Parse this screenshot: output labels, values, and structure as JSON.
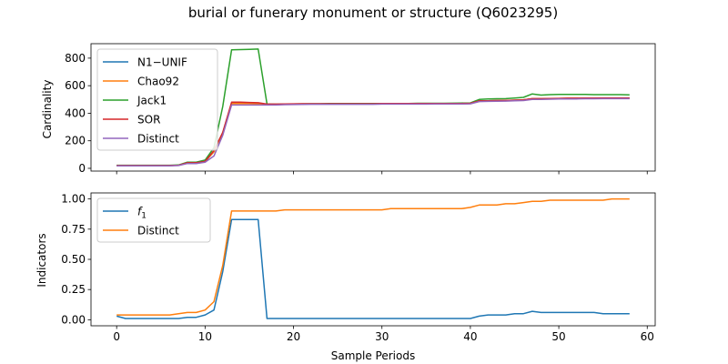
{
  "figure": {
    "title": "burial or funerary monument or structure (Q6023295)",
    "xlabel": "Sample Periods"
  },
  "chart_data": [
    {
      "type": "line",
      "ylabel": "Cardinality",
      "xlim": [
        -2.9,
        60.9
      ],
      "ylim": [
        -20,
        905
      ],
      "xticks": [
        0,
        10,
        20,
        30,
        40,
        50,
        60
      ],
      "yticks": [
        0,
        200,
        400,
        600,
        800
      ],
      "ytick_labels": [
        "0",
        "200",
        "400",
        "600",
        "800"
      ],
      "legend_position": "upper-left",
      "x": [
        0,
        1,
        2,
        3,
        4,
        5,
        6,
        7,
        8,
        9,
        10,
        11,
        12,
        13,
        14,
        15,
        16,
        17,
        18,
        19,
        20,
        21,
        22,
        23,
        24,
        25,
        26,
        27,
        28,
        29,
        30,
        31,
        32,
        33,
        34,
        35,
        36,
        37,
        38,
        39,
        40,
        41,
        42,
        43,
        44,
        45,
        46,
        47,
        48,
        49,
        50,
        51,
        52,
        53,
        54,
        55,
        56,
        57,
        58
      ],
      "series": [
        {
          "name": "N1−UNIF",
          "color": "#1f77b4",
          "values": [
            20,
            20,
            20,
            20,
            20,
            20,
            20,
            22,
            40,
            40,
            50,
            120,
            260,
            470,
            470,
            470,
            468,
            465,
            465,
            465,
            466,
            467,
            467,
            467,
            467,
            467,
            467,
            467,
            467,
            467,
            468,
            468,
            468,
            468,
            468,
            468,
            469,
            469,
            469,
            469,
            470,
            490,
            491,
            492,
            493,
            495,
            497,
            505,
            505,
            506,
            507,
            508,
            508,
            509,
            509,
            510,
            510,
            510,
            510
          ]
        },
        {
          "name": "Chao92",
          "color": "#ff7f0e",
          "values": [
            20,
            20,
            20,
            20,
            20,
            20,
            20,
            22,
            40,
            40,
            50,
            120,
            260,
            470,
            470,
            470,
            468,
            465,
            465,
            465,
            466,
            467,
            467,
            467,
            467,
            467,
            467,
            467,
            467,
            467,
            468,
            468,
            468,
            468,
            468,
            468,
            469,
            469,
            469,
            469,
            470,
            490,
            491,
            492,
            493,
            495,
            497,
            505,
            505,
            506,
            507,
            508,
            508,
            509,
            509,
            510,
            510,
            510,
            510
          ]
        },
        {
          "name": "Jack1",
          "color": "#2ca02c",
          "values": [
            22,
            22,
            22,
            22,
            22,
            22,
            22,
            24,
            45,
            45,
            60,
            150,
            450,
            860,
            862,
            864,
            866,
            467,
            465,
            466,
            467,
            468,
            469,
            469,
            470,
            470,
            470,
            470,
            470,
            470,
            471,
            471,
            471,
            471,
            472,
            472,
            472,
            472,
            473,
            474,
            475,
            500,
            503,
            505,
            506,
            510,
            515,
            540,
            532,
            535,
            536,
            537,
            537,
            536,
            535,
            535,
            535,
            535,
            533
          ]
        },
        {
          "name": "SOR",
          "color": "#d62728",
          "values": [
            20,
            20,
            20,
            20,
            20,
            20,
            20,
            22,
            40,
            40,
            50,
            130,
            260,
            480,
            480,
            478,
            476,
            466,
            466,
            467,
            468,
            469,
            469,
            469,
            469,
            469,
            469,
            469,
            469,
            469,
            470,
            470,
            470,
            470,
            470,
            470,
            471,
            471,
            471,
            471,
            472,
            490,
            491,
            492,
            493,
            495,
            497,
            506,
            506,
            507,
            508,
            509,
            509,
            510,
            510,
            511,
            511,
            511,
            511
          ]
        },
        {
          "name": "Distinct",
          "color": "#9467bd",
          "values": [
            18,
            18,
            18,
            18,
            18,
            18,
            18,
            20,
            35,
            35,
            45,
            90,
            240,
            460,
            460,
            460,
            460,
            460,
            460,
            462,
            463,
            464,
            465,
            465,
            465,
            465,
            465,
            465,
            465,
            465,
            466,
            466,
            466,
            466,
            466,
            466,
            467,
            467,
            467,
            467,
            468,
            485,
            486,
            487,
            488,
            490,
            492,
            500,
            500,
            502,
            503,
            504,
            504,
            505,
            505,
            506,
            506,
            506,
            506
          ]
        }
      ]
    },
    {
      "type": "line",
      "ylabel": "Indicators",
      "xlim": [
        -2.9,
        60.9
      ],
      "ylim": [
        -0.05,
        1.05
      ],
      "xticks": [
        0,
        10,
        20,
        30,
        40,
        50,
        60
      ],
      "xtick_labels": [
        "0",
        "10",
        "20",
        "30",
        "40",
        "50",
        "60"
      ],
      "yticks": [
        0,
        0.25,
        0.5,
        0.75,
        1.0
      ],
      "ytick_labels": [
        "0.00",
        "0.25",
        "0.50",
        "0.75",
        "1.00"
      ],
      "legend_position": "upper-left",
      "x": [
        0,
        1,
        2,
        3,
        4,
        5,
        6,
        7,
        8,
        9,
        10,
        11,
        12,
        13,
        14,
        15,
        16,
        17,
        18,
        19,
        20,
        21,
        22,
        23,
        24,
        25,
        26,
        27,
        28,
        29,
        30,
        31,
        32,
        33,
        34,
        35,
        36,
        37,
        38,
        39,
        40,
        41,
        42,
        43,
        44,
        45,
        46,
        47,
        48,
        49,
        50,
        51,
        52,
        53,
        54,
        55,
        56,
        57,
        58
      ],
      "series": [
        {
          "name": "f",
          "name_sub": "1",
          "color": "#1f77b4",
          "values": [
            0.03,
            0.01,
            0.01,
            0.01,
            0.01,
            0.01,
            0.01,
            0.01,
            0.02,
            0.02,
            0.04,
            0.08,
            0.4,
            0.83,
            0.83,
            0.83,
            0.83,
            0.01,
            0.01,
            0.01,
            0.01,
            0.01,
            0.01,
            0.01,
            0.01,
            0.01,
            0.01,
            0.01,
            0.01,
            0.01,
            0.01,
            0.01,
            0.01,
            0.01,
            0.01,
            0.01,
            0.01,
            0.01,
            0.01,
            0.01,
            0.01,
            0.03,
            0.04,
            0.04,
            0.04,
            0.05,
            0.05,
            0.07,
            0.06,
            0.06,
            0.06,
            0.06,
            0.06,
            0.06,
            0.06,
            0.05,
            0.05,
            0.05,
            0.05
          ]
        },
        {
          "name": "Distinct",
          "color": "#ff7f0e",
          "values": [
            0.04,
            0.04,
            0.04,
            0.04,
            0.04,
            0.04,
            0.04,
            0.05,
            0.06,
            0.06,
            0.08,
            0.15,
            0.45,
            0.9,
            0.9,
            0.9,
            0.9,
            0.9,
            0.9,
            0.91,
            0.91,
            0.91,
            0.91,
            0.91,
            0.91,
            0.91,
            0.91,
            0.91,
            0.91,
            0.91,
            0.91,
            0.92,
            0.92,
            0.92,
            0.92,
            0.92,
            0.92,
            0.92,
            0.92,
            0.92,
            0.93,
            0.95,
            0.95,
            0.95,
            0.96,
            0.96,
            0.97,
            0.98,
            0.98,
            0.99,
            0.99,
            0.99,
            0.99,
            0.99,
            0.99,
            0.99,
            1.0,
            1.0,
            1.0
          ]
        }
      ]
    }
  ]
}
